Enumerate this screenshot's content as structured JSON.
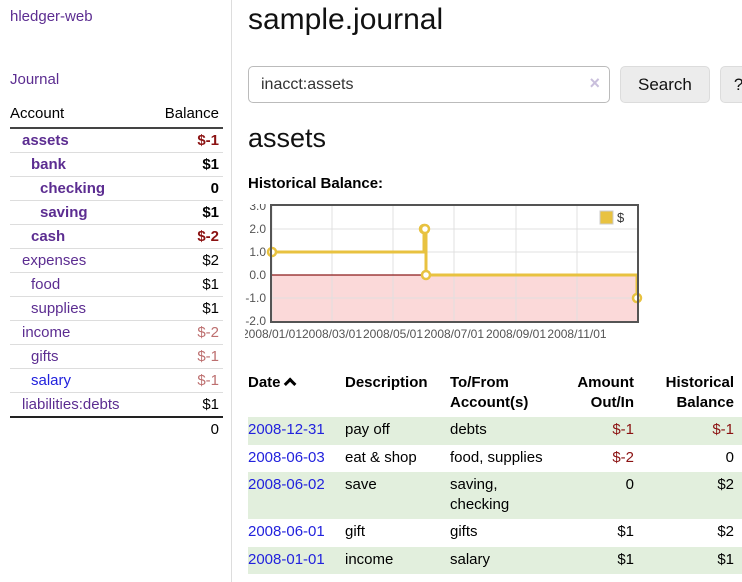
{
  "app": {
    "title": "hledger-web",
    "nav_journal": "Journal"
  },
  "sidebar": {
    "header": {
      "account": "Account",
      "balance": "Balance"
    },
    "accounts": [
      {
        "name": "assets",
        "level": 1,
        "bold": true,
        "balance": "$-1",
        "balance_style": "neg"
      },
      {
        "name": "bank",
        "level": 2,
        "bold": true,
        "balance": "$1",
        "balance_style": "pos"
      },
      {
        "name": "checking",
        "level": 3,
        "bold": true,
        "balance": "0",
        "balance_style": "pos"
      },
      {
        "name": "saving",
        "level": 3,
        "bold": true,
        "balance": "$1",
        "balance_style": "pos"
      },
      {
        "name": "cash",
        "level": 2,
        "bold": true,
        "balance": "$-2",
        "balance_style": "neg"
      },
      {
        "name": "expenses",
        "level": 1,
        "bold": false,
        "balance": "$2",
        "balance_style": "pos"
      },
      {
        "name": "food",
        "level": 2,
        "bold": false,
        "balance": "$1",
        "balance_style": "pos"
      },
      {
        "name": "supplies",
        "level": 2,
        "bold": false,
        "balance": "$1",
        "balance_style": "pos"
      },
      {
        "name": "income",
        "level": 1,
        "bold": false,
        "balance": "$-2",
        "balance_style": "negmuted"
      },
      {
        "name": "gifts",
        "level": 2,
        "bold": false,
        "balance": "$-1",
        "balance_style": "negmuted"
      },
      {
        "name": "salary",
        "level": 2,
        "bold": false,
        "link_style": "blue",
        "balance": "$-1",
        "balance_style": "negmuted"
      },
      {
        "name": "liabilities:debts",
        "level": 1,
        "bold": false,
        "balance": "$1",
        "balance_style": "pos"
      }
    ],
    "total": "0"
  },
  "main": {
    "title": "sample.journal",
    "search": {
      "value": "inacct:assets",
      "clear_icon": "×",
      "button": "Search",
      "help_button": "?"
    },
    "account_heading": "assets",
    "chart_label": "Historical Balance:"
  },
  "chart_data": {
    "type": "line",
    "title": "Historical Balance",
    "step": true,
    "series": [
      {
        "name": "$",
        "color": "#e8c240",
        "points": [
          [
            "2008-01-01",
            1
          ],
          [
            "2008-06-01",
            2
          ],
          [
            "2008-06-02",
            2
          ],
          [
            "2008-06-03",
            0
          ],
          [
            "2008-12-31",
            -1
          ]
        ]
      }
    ],
    "x_domain": [
      "2008-01-01",
      "2008-12-31"
    ],
    "x_ticks": [
      "2008/01/01",
      "2008/03/01",
      "2008/05/01",
      "2008/07/01",
      "2008/09/01",
      "2008/11/01"
    ],
    "y_ticks": [
      3.0,
      2.0,
      1.0,
      0.0,
      -1.0,
      -2.0
    ],
    "ylim": [
      -2,
      3
    ],
    "grid": true,
    "legend_position": "top-right",
    "negative_fill": "#fbd9d9",
    "zero_line_color": "#8b1a1a",
    "axis_text_color": "#545454",
    "border_color": "#545454",
    "grid_color": "#e0e0e0"
  },
  "table": {
    "headers": {
      "date": "Date",
      "sort_icon": "caret-up",
      "description": "Description",
      "tofrom": "To/From Account(s)",
      "amount": "Amount Out/In",
      "balance": "Historical Balance"
    },
    "rows": [
      {
        "date": "2008-12-31",
        "description": "pay off",
        "accounts": "debts",
        "amount": "$-1",
        "amount_style": "neg",
        "balance": "$-1",
        "balance_style": "neg"
      },
      {
        "date": "2008-06-03",
        "description": "eat & shop",
        "accounts": "food, supplies",
        "amount": "$-2",
        "amount_style": "neg",
        "balance": "0",
        "balance_style": "pos"
      },
      {
        "date": "2008-06-02",
        "description": "save",
        "accounts": "saving, checking",
        "amount": "0",
        "amount_style": "pos",
        "balance": "$2",
        "balance_style": "pos"
      },
      {
        "date": "2008-06-01",
        "description": "gift",
        "accounts": "gifts",
        "amount": "$1",
        "amount_style": "pos",
        "balance": "$2",
        "balance_style": "pos"
      },
      {
        "date": "2008-01-01",
        "description": "income",
        "accounts": "salary",
        "amount": "$1",
        "amount_style": "pos",
        "balance": "$1",
        "balance_style": "pos"
      }
    ]
  },
  "colors": {
    "link_purple": "#5c2d91",
    "link_blue": "#2222dd",
    "negative_dark_red": "#8b1212",
    "negative_muted_red": "#bd6f6f",
    "table_row_green": "#e2efdd",
    "chart_line_gold": "#e8c240"
  }
}
